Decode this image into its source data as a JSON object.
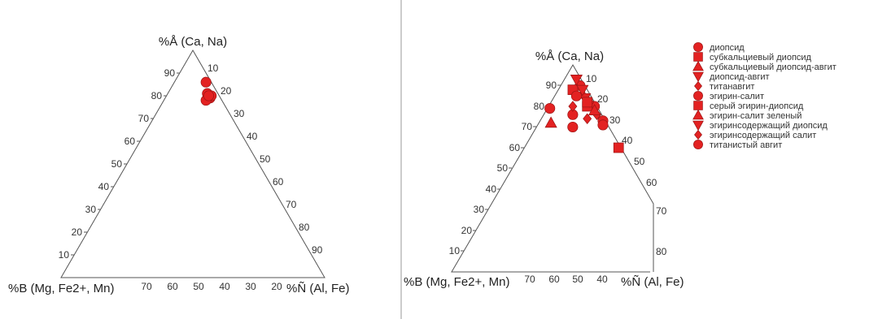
{
  "chart_data": [
    {
      "type": "scatter",
      "subtype": "ternary",
      "apex_labels": {
        "top": "%Å (Ca, Na)",
        "bottom_left": "%B (Mg, Fe2+, Mn)",
        "bottom_right": "%Ñ (Al, Fe)"
      },
      "left_axis_ticks": [
        "90",
        "80",
        "70",
        "60",
        "50",
        "40",
        "30",
        "20",
        "10"
      ],
      "right_axis_ticks": [
        "10",
        "20",
        "30",
        "40",
        "50",
        "60",
        "70",
        "80",
        "90"
      ],
      "bottom_axis_ticks": [
        "70",
        "60",
        "50",
        "40",
        "30",
        "20"
      ],
      "marker_color": "#e32222",
      "series": [
        {
          "marker": "circle",
          "points": [
            {
              "a": 86,
              "c": 12
            },
            {
              "a": 81,
              "c": 15
            },
            {
              "a": 79,
              "c": 17
            },
            {
              "a": 80,
              "c": 17
            },
            {
              "a": 78,
              "c": 16
            },
            {
              "a": 80,
              "c": 16
            }
          ]
        }
      ]
    },
    {
      "type": "scatter",
      "subtype": "ternary",
      "apex_labels": {
        "top": "%Å (Ca, Na)",
        "bottom_left": "%B (Mg, Fe2+, Mn)",
        "bottom_right": "%Ñ (Al, Fe)"
      },
      "left_axis_ticks": [
        "90",
        "80",
        "70",
        "60",
        "50",
        "40",
        "30",
        "20",
        "10"
      ],
      "right_axis_ticks": [
        "10",
        "20",
        "30",
        "40",
        "50",
        "60",
        "70",
        "80"
      ],
      "bottom_axis_ticks": [
        "70",
        "60",
        "50",
        "40"
      ],
      "marker_color": "#e32222",
      "series": [
        {
          "name": "диопсид",
          "marker": "circle",
          "points": [
            {
              "a": 90,
              "c": 8
            },
            {
              "a": 80,
              "c": 19
            },
            {
              "a": 73,
              "c": 26
            }
          ]
        },
        {
          "name": "субкальциевый диопсид",
          "marker": "square",
          "points": [
            {
              "a": 88,
              "c": 6
            },
            {
              "a": 60,
              "c": 39
            },
            {
              "a": 80,
              "c": 16
            }
          ]
        },
        {
          "name": "субкальциевый диопсид-авгит",
          "marker": "triangle-up",
          "points": [
            {
              "a": 86,
              "c": 11
            },
            {
              "a": 72,
              "c": 5
            }
          ]
        },
        {
          "name": "диопсид-авгит",
          "marker": "triangle-down",
          "points": [
            {
              "a": 93,
              "c": 5
            },
            {
              "a": 84,
              "c": 13
            }
          ]
        },
        {
          "name": "титанавгит",
          "marker": "diamond",
          "points": [
            {
              "a": 82,
              "c": 16
            },
            {
              "a": 76,
              "c": 22
            }
          ]
        },
        {
          "name": "эгирин-салит",
          "marker": "circle",
          "points": [
            {
              "a": 76,
              "c": 12
            },
            {
              "a": 71,
              "c": 27
            }
          ]
        },
        {
          "name": "серый эгирин-диопсид",
          "marker": "square",
          "points": [
            {
              "a": 82,
              "c": 15
            }
          ]
        },
        {
          "name": "эгирин-салит зеленый",
          "marker": "triangle-up",
          "points": [
            {
              "a": 78,
              "c": 20
            }
          ]
        },
        {
          "name": "эгиринсодержащий диопсид",
          "marker": "triangle-down",
          "points": [
            {
              "a": 88,
              "c": 10
            }
          ]
        },
        {
          "name": "эгиринсодержащий салит",
          "marker": "diamond",
          "points": [
            {
              "a": 80,
              "c": 10
            },
            {
              "a": 74,
              "c": 19
            }
          ]
        },
        {
          "name": "титанистый авгит",
          "marker": "circle",
          "points": [
            {
              "a": 79,
              "c": 1
            },
            {
              "a": 70,
              "c": 15
            },
            {
              "a": 85,
              "c": 9
            }
          ]
        }
      ]
    }
  ]
}
